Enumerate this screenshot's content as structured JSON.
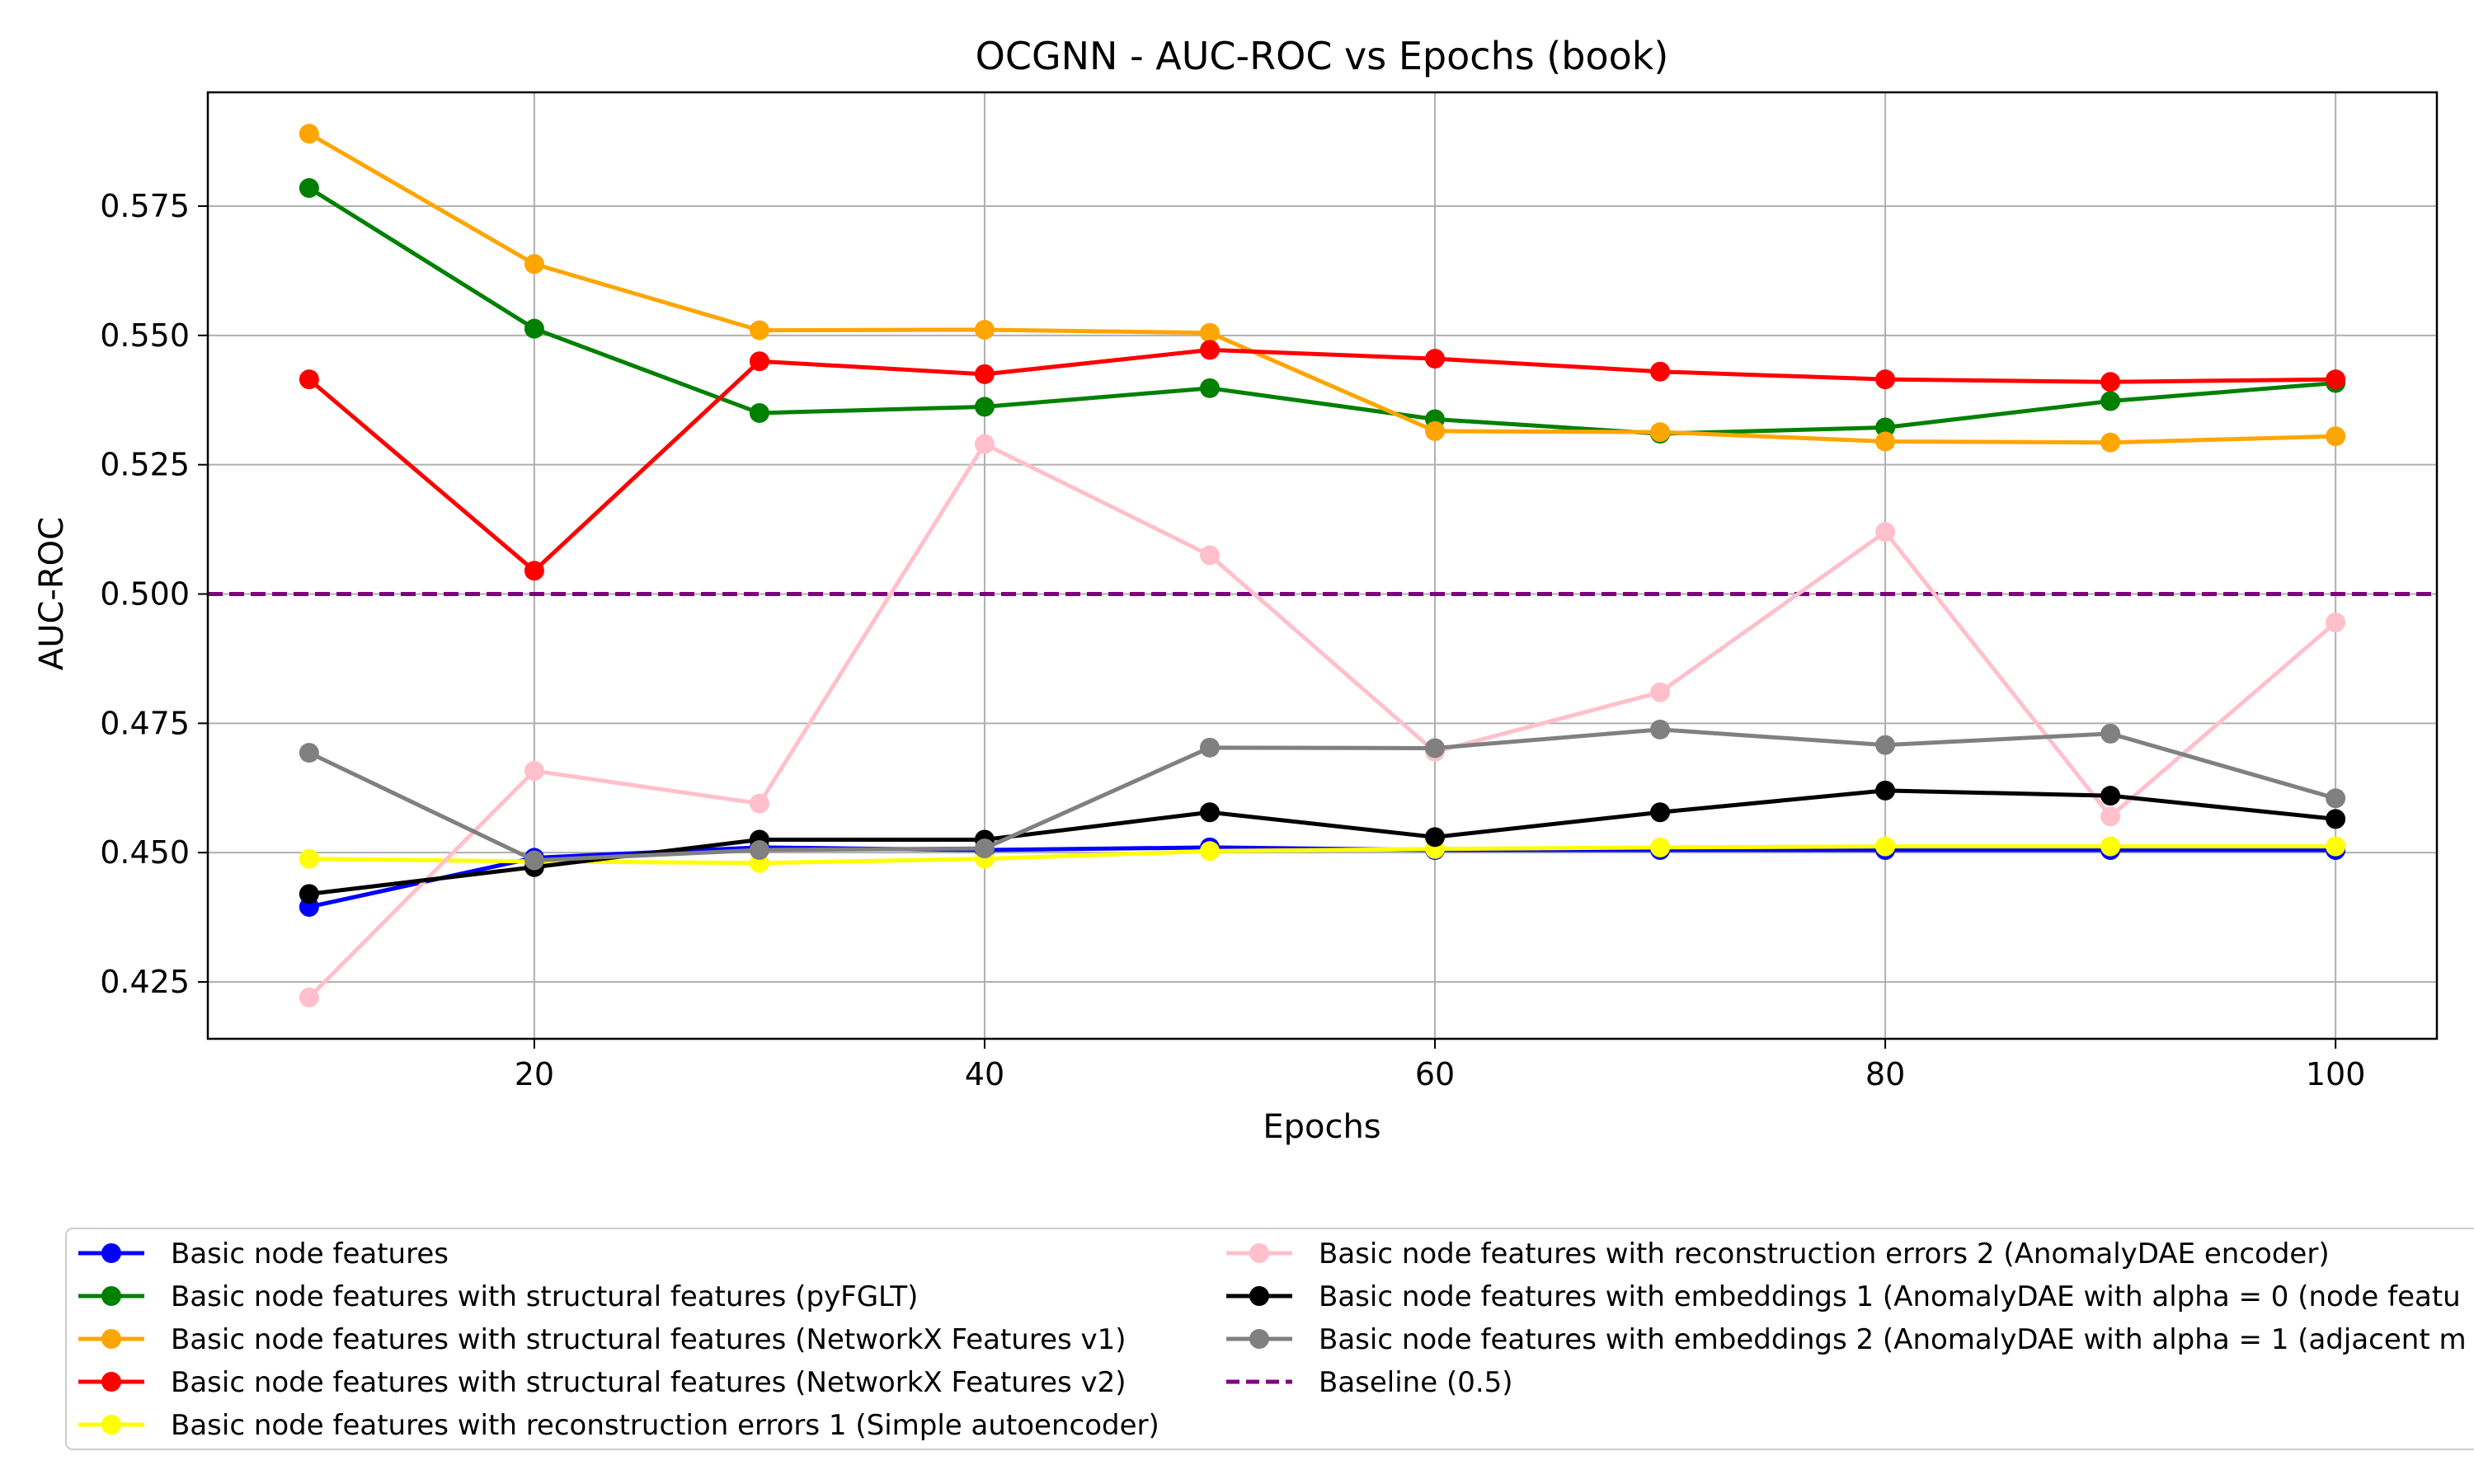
{
  "chart_data": {
    "type": "line",
    "title": "OCGNN - AUC-ROC vs Epochs (book)",
    "xlabel": "Epochs",
    "ylabel": "AUC-ROC",
    "xlim": [
      5.5,
      104.5
    ],
    "ylim": [
      0.414,
      0.597
    ],
    "x_ticks": [
      20,
      40,
      60,
      80,
      100
    ],
    "x_tick_labels": [
      "20",
      "40",
      "60",
      "80",
      "100"
    ],
    "y_ticks": [
      0.425,
      0.45,
      0.475,
      0.5,
      0.525,
      0.55,
      0.575
    ],
    "y_tick_labels": [
      "0.425",
      "0.450",
      "0.475",
      "0.500",
      "0.525",
      "0.550",
      "0.575"
    ],
    "grid": true,
    "legend_placement": "below plot, two columns",
    "x": [
      10,
      20,
      30,
      40,
      50,
      60,
      70,
      80,
      90,
      100
    ],
    "series": [
      {
        "name": "Basic node features",
        "color": "#0000ff",
        "values": [
          0.4395,
          0.449,
          0.451,
          0.4505,
          0.451,
          0.4505,
          0.4505,
          0.4505,
          0.4505,
          0.4505
        ]
      },
      {
        "name": "Basic node features with structural features (pyFGLT)",
        "color": "#008000",
        "values": [
          0.5785,
          0.5513,
          0.535,
          0.5362,
          0.5398,
          0.5338,
          0.531,
          0.5322,
          0.5373,
          0.5408
        ]
      },
      {
        "name": "Basic node features with structural features (NetworkX Features v1)",
        "color": "#ffa500",
        "values": [
          0.589,
          0.5638,
          0.551,
          0.5511,
          0.5505,
          0.5315,
          0.5313,
          0.5295,
          0.5293,
          0.5305
        ]
      },
      {
        "name": "Basic node features with structural features (NetworkX Features v2)",
        "color": "#ff0000",
        "values": [
          0.5415,
          0.5045,
          0.545,
          0.5425,
          0.5472,
          0.5455,
          0.543,
          0.5415,
          0.541,
          0.5415
        ]
      },
      {
        "name": "Basic node features with reconstruction errors 1 (Simple autoencoder)",
        "color": "#ffff00",
        "values": [
          0.4488,
          0.4483,
          0.448,
          0.4488,
          0.4503,
          0.4507,
          0.451,
          0.4512,
          0.4512,
          0.4512
        ]
      },
      {
        "name": "Basic node features with reconstruction errors 2 (AnomalyDAE encoder)",
        "color": "#ffc0cb",
        "values": [
          0.422,
          0.4658,
          0.4595,
          0.529,
          0.5075,
          0.4695,
          0.481,
          0.512,
          0.457,
          0.4945
        ]
      },
      {
        "name": "Basic node features with embeddings 1 (AnomalyDAE with alpha = 0 (node featu",
        "color": "#000000",
        "values": [
          0.442,
          0.4472,
          0.4525,
          0.4525,
          0.4578,
          0.453,
          0.4578,
          0.462,
          0.461,
          0.4565
        ]
      },
      {
        "name": "Basic node features with embeddings 2 (AnomalyDAE with alpha = 1 (adjacent m",
        "color": "#808080",
        "values": [
          0.4693,
          0.4485,
          0.4505,
          0.4508,
          0.4703,
          0.4702,
          0.4738,
          0.4708,
          0.473,
          0.4605
        ]
      }
    ],
    "baseline": {
      "name": "Baseline (0.5)",
      "value": 0.5,
      "color": "#800080",
      "style": "dashed"
    }
  }
}
